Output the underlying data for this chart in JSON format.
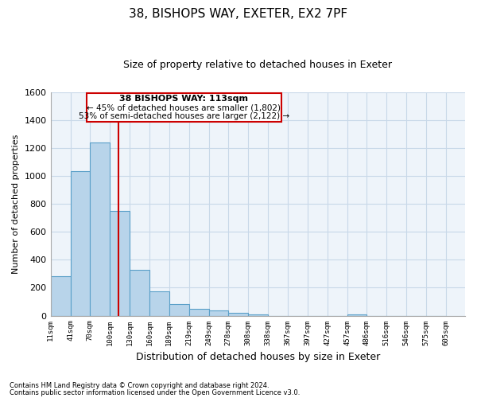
{
  "title": "38, BISHOPS WAY, EXETER, EX2 7PF",
  "subtitle": "Size of property relative to detached houses in Exeter",
  "xlabel": "Distribution of detached houses by size in Exeter",
  "ylabel": "Number of detached properties",
  "footnote1": "Contains HM Land Registry data © Crown copyright and database right 2024.",
  "footnote2": "Contains public sector information licensed under the Open Government Licence v3.0.",
  "annotation_line1": "38 BISHOPS WAY: 113sqm",
  "annotation_line2": "← 45% of detached houses are smaller (1,802)",
  "annotation_line3": "53% of semi-detached houses are larger (2,122) →",
  "bar_values": [
    280,
    1035,
    1240,
    750,
    330,
    175,
    85,
    50,
    35,
    20,
    10,
    0,
    0,
    0,
    0,
    10,
    0,
    0,
    0,
    0
  ],
  "bin_edges": [
    11,
    41,
    70,
    100,
    130,
    160,
    189,
    219,
    249,
    278,
    308,
    338,
    367,
    397,
    427,
    457,
    486,
    516,
    546,
    575,
    605
  ],
  "tick_labels": [
    "11sqm",
    "41sqm",
    "70sqm",
    "100sqm",
    "130sqm",
    "160sqm",
    "189sqm",
    "219sqm",
    "249sqm",
    "278sqm",
    "308sqm",
    "338sqm",
    "367sqm",
    "397sqm",
    "427sqm",
    "457sqm",
    "486sqm",
    "516sqm",
    "546sqm",
    "575sqm",
    "605sqm"
  ],
  "ylim": [
    0,
    1600
  ],
  "xlim_min": 11,
  "xlim_max": 634,
  "property_line_x": 113,
  "bar_color": "#b8d4ea",
  "bar_edge_color": "#5a9fc8",
  "property_line_color": "#cc0000",
  "annotation_box_edge_color": "#cc0000",
  "background_color": "#ffffff",
  "grid_color": "#c8d8e8"
}
